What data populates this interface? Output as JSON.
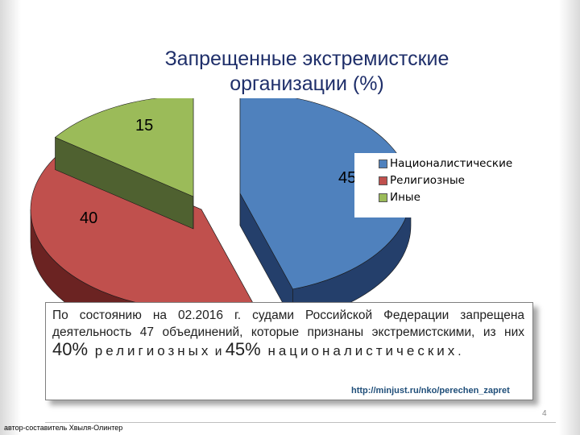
{
  "chart_data": {
    "type": "pie",
    "style": "3d-exploded",
    "title_lines": [
      "Запрещенные  экстремистские",
      "организации  (%)"
    ],
    "categories": [
      "Националистические",
      "Религиозные",
      "Иные"
    ],
    "values": [
      45,
      40,
      15
    ],
    "data_labels": [
      "45",
      "40",
      "15"
    ],
    "colors": [
      "#4f81bd",
      "#c0504d",
      "#9bbb59"
    ],
    "side_colors": [
      "#243f6b",
      "#6b2322",
      "#4f6130"
    ],
    "legend_position": "right"
  },
  "info_box": {
    "text_1": "По состоянию на 02.2016 г. судами Российской Федерации запрещена деятельность 47 объединений, которые признаны экстремистскими, из них ",
    "pct_1": "40%",
    "word_1": " религиозных",
    "conj": " и ",
    "pct_2": "45%",
    "word_2": " националистических",
    "end": "."
  },
  "source_url": "http://minjust.ru/nko/perechen_zapret",
  "page_number": "4",
  "author": "автор-составитель Хвыля-Олинтер"
}
